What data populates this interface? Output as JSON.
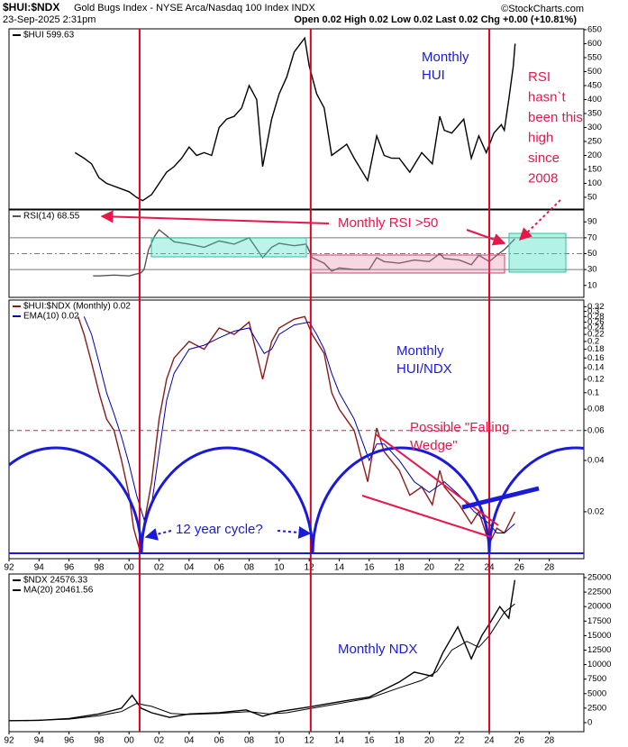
{
  "header": {
    "symbol": "$HUI:$NDX",
    "name": "Gold Bugs Index - NYSE Arca/Nasdaq 100 Index INDX",
    "date": "23-Sep-2025 2:31pm",
    "quote": "Open 0.02 High 0.02 Low 0.02 Last 0.02 Chg +0.00 (+10.81%)",
    "source": "©StockCharts.com"
  },
  "vertical_lines": [
    2000.7,
    2012.1,
    2024.0
  ],
  "annotations": [
    [
      "Monthly",
      "HUI"
    ],
    [
      "RSI",
      "hasn`t",
      "been this",
      "high",
      "since",
      "2008"
    ],
    [
      "Monthly RSI >50"
    ],
    [
      "Monthly",
      "HUI/NDX"
    ],
    [
      "Possible \"Falling",
      "Wedge\""
    ],
    [
      "12 year cycle?"
    ],
    [
      "Monthly NDX"
    ]
  ],
  "chart_data": [
    {
      "type": "line",
      "xlim": [
        1992,
        2030.3
      ],
      "ylim": [
        8,
        653
      ],
      "yticks": [
        50,
        100,
        150,
        200,
        250,
        300,
        350,
        400,
        450,
        500,
        550,
        600,
        650
      ],
      "series": [
        {
          "name": "$HUI 599.63",
          "color": "#000000",
          "x": [
            1996.4,
            1997,
            1997.5,
            1998,
            1998.5,
            1999,
            1999.5,
            2000,
            2000.5,
            2000.9,
            2001.5,
            2002,
            2002.5,
            2003,
            2003.5,
            2004,
            2004.5,
            2005,
            2005.5,
            2006,
            2006.5,
            2007,
            2007.5,
            2008,
            2008.5,
            2008.9,
            2009.5,
            2010,
            2010.5,
            2011,
            2011.7,
            2012,
            2012.5,
            2013,
            2013.5,
            2014,
            2014.5,
            2015,
            2015.9,
            2016.5,
            2017,
            2017.5,
            2018,
            2018.7,
            2019.5,
            2020.2,
            2020.7,
            2021,
            2021.5,
            2022.3,
            2022.8,
            2023.3,
            2023.8,
            2024.3,
            2024.8,
            2025,
            2025.3,
            2025.6,
            2025.72
          ],
          "values": [
            210,
            190,
            170,
            120,
            100,
            90,
            80,
            70,
            50,
            38,
            60,
            100,
            140,
            160,
            190,
            230,
            200,
            210,
            200,
            300,
            330,
            340,
            370,
            450,
            400,
            160,
            330,
            420,
            480,
            570,
            620,
            520,
            420,
            370,
            200,
            220,
            240,
            190,
            110,
            270,
            200,
            190,
            190,
            140,
            210,
            170,
            340,
            290,
            280,
            330,
            190,
            270,
            210,
            280,
            310,
            290,
            400,
            520,
            600
          ]
        }
      ]
    },
    {
      "type": "line",
      "xlim": [
        1992,
        2030.3
      ],
      "ylim": [
        -5,
        105
      ],
      "yticks": [
        10,
        30,
        50,
        70,
        90
      ],
      "reference_lines": [
        30,
        50,
        70
      ],
      "series": [
        {
          "name": "RSI(14) 68.55",
          "color": "#555555",
          "x": [
            1997.6,
            1998,
            1999,
            2000,
            2000.8,
            2001,
            2001.3,
            2001.7,
            2002,
            2003,
            2004,
            2005,
            2006,
            2007,
            2008,
            2008.9,
            2009.5,
            2010,
            2011,
            2011.8,
            2012.2,
            2013,
            2013.5,
            2014,
            2015,
            2016,
            2016.5,
            2017,
            2018,
            2019,
            2020,
            2020.7,
            2021,
            2022,
            2022.8,
            2023.3,
            2024,
            2024.5,
            2025,
            2025.7
          ],
          "values": [
            22,
            22,
            23,
            22,
            26,
            30,
            55,
            72,
            80,
            65,
            62,
            58,
            66,
            62,
            70,
            45,
            58,
            63,
            60,
            62,
            45,
            38,
            28,
            32,
            30,
            30,
            45,
            40,
            38,
            42,
            40,
            50,
            44,
            42,
            36,
            48,
            40,
            48,
            55,
            68.55
          ]
        }
      ]
    },
    {
      "type": "line",
      "log_scale": true,
      "xlim": [
        1992,
        2030.3
      ],
      "ylim": [
        0.0106,
        0.35
      ],
      "yticks": [
        0.02,
        0.04,
        0.06,
        0.08,
        0.1,
        0.12,
        0.14,
        0.16,
        0.18,
        0.2,
        0.22,
        0.24,
        0.26,
        0.28,
        0.3,
        0.32
      ],
      "reference_lines": [
        0.06
      ],
      "xticks": [
        {
          "value": 1992,
          "label": "92"
        },
        {
          "value": 1994,
          "label": "94"
        },
        {
          "value": 1996,
          "label": "96"
        },
        {
          "value": 1998,
          "label": "98"
        },
        {
          "value": 2000,
          "label": "00"
        },
        {
          "value": 2002,
          "label": "02"
        },
        {
          "value": 2004,
          "label": "04"
        },
        {
          "value": 2006,
          "label": "06"
        },
        {
          "value": 2008,
          "label": "08"
        },
        {
          "value": 2010,
          "label": "10"
        },
        {
          "value": 2012,
          "label": "12"
        },
        {
          "value": 2014,
          "label": "14"
        },
        {
          "value": 2016,
          "label": "16"
        },
        {
          "value": 2018,
          "label": "18"
        },
        {
          "value": 2020,
          "label": "20"
        },
        {
          "value": 2022,
          "label": "22"
        },
        {
          "value": 2024,
          "label": "24"
        },
        {
          "value": 2026,
          "label": "26"
        },
        {
          "value": 2028,
          "label": "28"
        }
      ],
      "series": [
        {
          "name": "$HUI:$NDX (Monthly) 0.02",
          "color": "#8b1a1a",
          "x": [
            1996.6,
            1997,
            1997.5,
            1998,
            1998.5,
            1999,
            1999.5,
            2000,
            2000.3,
            2000.7,
            2001,
            2001.5,
            2002,
            2002.5,
            2003,
            2004,
            2005,
            2006,
            2007,
            2008,
            2008.9,
            2009.5,
            2010,
            2011,
            2011.7,
            2012.2,
            2013,
            2013.5,
            2014,
            2015,
            2015.9,
            2016.5,
            2017,
            2018,
            2018.7,
            2019.5,
            2020.2,
            2020.7,
            2021,
            2022,
            2022.8,
            2023.3,
            2024,
            2024.5,
            2025,
            2025.7
          ],
          "values": [
            0.28,
            0.22,
            0.15,
            0.1,
            0.07,
            0.06,
            0.04,
            0.025,
            0.016,
            0.012,
            0.017,
            0.03,
            0.07,
            0.12,
            0.16,
            0.2,
            0.18,
            0.24,
            0.22,
            0.26,
            0.12,
            0.2,
            0.24,
            0.27,
            0.28,
            0.22,
            0.17,
            0.1,
            0.08,
            0.06,
            0.03,
            0.062,
            0.045,
            0.035,
            0.025,
            0.028,
            0.022,
            0.035,
            0.028,
            0.022,
            0.017,
            0.02,
            0.013,
            0.016,
            0.015,
            0.02
          ]
        },
        {
          "name": "EMA(10) 0.02",
          "color": "#0000aa",
          "x": [
            1997,
            1997.5,
            1998,
            1998.5,
            1999,
            1999.5,
            2000,
            2000.5,
            2001,
            2001.5,
            2002,
            2002.5,
            2003,
            2004,
            2005,
            2006,
            2007,
            2008,
            2009,
            2009.5,
            2010,
            2011,
            2012,
            2012.5,
            2013,
            2013.5,
            2014,
            2015,
            2016,
            2016.5,
            2017,
            2018,
            2019,
            2020,
            2021,
            2022,
            2023,
            2024,
            2024.5,
            2025,
            2025.7
          ],
          "values": [
            0.28,
            0.22,
            0.15,
            0.1,
            0.075,
            0.055,
            0.038,
            0.025,
            0.018,
            0.022,
            0.045,
            0.09,
            0.13,
            0.18,
            0.19,
            0.21,
            0.23,
            0.24,
            0.17,
            0.18,
            0.22,
            0.25,
            0.26,
            0.22,
            0.18,
            0.13,
            0.1,
            0.07,
            0.04,
            0.05,
            0.05,
            0.04,
            0.03,
            0.026,
            0.03,
            0.025,
            0.02,
            0.017,
            0.015,
            0.015,
            0.017
          ]
        }
      ]
    },
    {
      "type": "line",
      "xlim": [
        1992,
        2030.3
      ],
      "ylim": [
        -1560,
        25620
      ],
      "yticks": [
        0,
        2500,
        5000,
        7500,
        10000,
        12500,
        15000,
        17500,
        20000,
        22500,
        25000
      ],
      "xticks": [
        {
          "value": 1992,
          "label": "92"
        },
        {
          "value": 1994,
          "label": "94"
        },
        {
          "value": 1996,
          "label": "96"
        },
        {
          "value": 1998,
          "label": "98"
        },
        {
          "value": 2000,
          "label": "00"
        },
        {
          "value": 2002,
          "label": "02"
        },
        {
          "value": 2004,
          "label": "04"
        },
        {
          "value": 2006,
          "label": "06"
        },
        {
          "value": 2008,
          "label": "08"
        },
        {
          "value": 2010,
          "label": "10"
        },
        {
          "value": 2012,
          "label": "12"
        },
        {
          "value": 2014,
          "label": "14"
        },
        {
          "value": 2016,
          "label": "16"
        },
        {
          "value": 2018,
          "label": "18"
        },
        {
          "value": 2020,
          "label": "20"
        },
        {
          "value": 2022,
          "label": "22"
        },
        {
          "value": 2024,
          "label": "24"
        },
        {
          "value": 2026,
          "label": "26"
        },
        {
          "value": 2028,
          "label": "28"
        }
      ],
      "series": [
        {
          "name": "$NDX 24576.33",
          "color": "#000000",
          "x": [
            1992,
            1994,
            1996,
            1998,
            1999.5,
            2000.2,
            2000.8,
            2001.5,
            2002.7,
            2004,
            2006,
            2007.8,
            2008.9,
            2010,
            2012,
            2014,
            2016,
            2018,
            2019,
            2020.2,
            2020.9,
            2021.9,
            2022.8,
            2023.5,
            2024,
            2024.7,
            2025.3,
            2025.7
          ],
          "values": [
            330,
            400,
            700,
            1500,
            2500,
            4700,
            2500,
            1700,
            900,
            1500,
            1700,
            2200,
            1100,
            1900,
            2700,
            3600,
            4400,
            7000,
            8700,
            8000,
            12000,
            16500,
            11000,
            15000,
            17000,
            20000,
            18000,
            24576.33
          ]
        },
        {
          "name": "MA(20) 20461.56",
          "color": "#000000",
          "x": [
            1993,
            1996,
            1998,
            1999.5,
            2000.5,
            2001.5,
            2002.8,
            2004,
            2006,
            2008,
            2009.3,
            2010.5,
            2012,
            2014,
            2016,
            2018,
            2019.5,
            2020.5,
            2021.5,
            2022.5,
            2023.3,
            2024,
            2025,
            2025.7
          ],
          "values": [
            350,
            600,
            1200,
            1900,
            3300,
            2800,
            1600,
            1400,
            1600,
            1900,
            1500,
            1700,
            2400,
            3300,
            4200,
            6000,
            7300,
            8800,
            12500,
            14000,
            13000,
            15000,
            19000,
            20461.56
          ]
        }
      ]
    }
  ]
}
